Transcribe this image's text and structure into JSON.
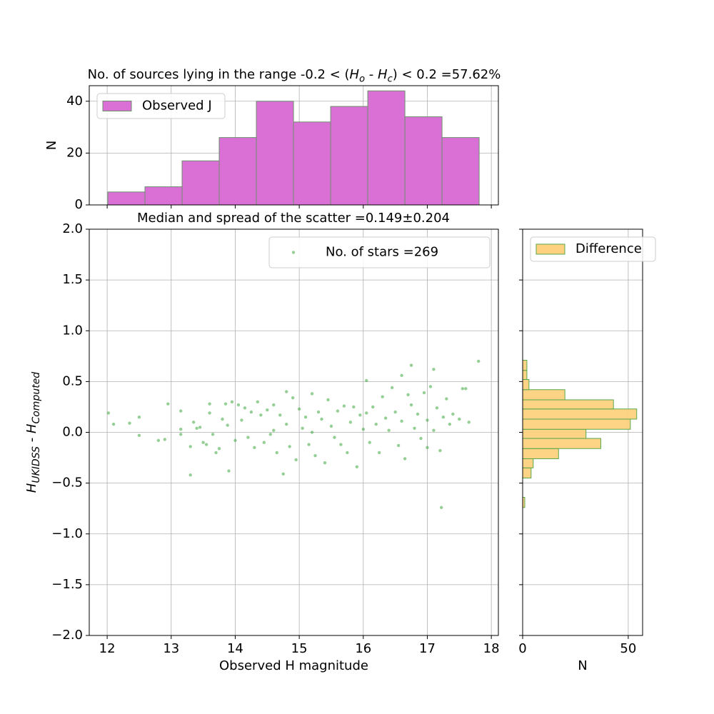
{
  "chart_data": [
    {
      "type": "histogram",
      "orientation": "vertical",
      "title_parts": [
        {
          "text": "No. of sources lying in the range -0.2 < ("
        },
        {
          "text": "H",
          "italic": true
        },
        {
          "text": "o",
          "italic": true,
          "sub": true
        },
        {
          "text": " - "
        },
        {
          "text": "H",
          "italic": true
        },
        {
          "text": "c",
          "italic": true,
          "sub": true
        },
        {
          "text": ") < 0.2 =57.62%"
        }
      ],
      "ylabel": "N",
      "bins": [
        12.01,
        12.59,
        13.17,
        13.75,
        14.33,
        14.91,
        15.49,
        16.07,
        16.65,
        17.23,
        17.81
      ],
      "series": [
        {
          "name": "Observed J",
          "color": "#da70d6",
          "edgecolor": "#6e8f6e",
          "values": [
            5,
            7,
            17,
            26,
            40,
            32,
            38,
            44,
            34,
            26
          ]
        }
      ],
      "xlim": [
        11.72,
        18.11
      ],
      "ylim": [
        0,
        46
      ],
      "xticks": [
        12,
        13,
        14,
        15,
        16,
        17,
        18
      ],
      "yticks": [
        0,
        20,
        40
      ],
      "grid": true,
      "legend": "upper left"
    },
    {
      "type": "scatter",
      "title": "Median and spread of the scatter =0.149±0.204",
      "xlabel": "Observed H magnitude",
      "ylabel_parts": [
        {
          "text": "H",
          "italic": true
        },
        {
          "text": "UKIDSS",
          "italic": true,
          "sub": true
        },
        {
          "text": " - "
        },
        {
          "text": "H",
          "italic": true
        },
        {
          "text": "Computed",
          "italic": true,
          "sub": true
        }
      ],
      "series": [
        {
          "name": "No. of stars =269",
          "color": "#2ca02c",
          "x": [
            12.02,
            12.1,
            12.35,
            12.5,
            12.5,
            12.8,
            12.9,
            12.95,
            13.15,
            13.15,
            13.15,
            13.3,
            13.3,
            13.35,
            13.4,
            13.45,
            13.5,
            13.55,
            13.6,
            13.6,
            13.65,
            13.7,
            13.75,
            13.8,
            13.85,
            13.88,
            13.9,
            13.95,
            14.0,
            14.05,
            14.1,
            14.15,
            14.2,
            14.25,
            14.3,
            14.35,
            14.4,
            14.45,
            14.5,
            14.55,
            14.6,
            14.6,
            14.65,
            14.7,
            14.75,
            14.8,
            14.8,
            14.85,
            14.9,
            14.95,
            15.0,
            15.05,
            15.1,
            15.15,
            15.2,
            15.2,
            15.25,
            15.3,
            15.35,
            15.4,
            15.45,
            15.5,
            15.55,
            15.6,
            15.65,
            15.7,
            15.75,
            15.8,
            15.85,
            15.9,
            15.95,
            16.0,
            16.05,
            16.05,
            16.1,
            16.15,
            16.2,
            16.25,
            16.3,
            16.35,
            16.4,
            16.45,
            16.5,
            16.55,
            16.6,
            16.6,
            16.65,
            16.7,
            16.75,
            16.75,
            16.8,
            16.85,
            16.9,
            16.95,
            17.0,
            17.0,
            17.05,
            17.1,
            17.1,
            17.15,
            17.2,
            17.22,
            17.25,
            17.3,
            17.35,
            17.4,
            17.5,
            17.55,
            17.6,
            17.65,
            17.8
          ],
          "values": [
            0.19,
            0.08,
            0.09,
            0.15,
            -0.03,
            -0.08,
            -0.07,
            0.28,
            0.21,
            0.03,
            -0.02,
            -0.14,
            -0.42,
            0.1,
            0.04,
            0.05,
            -0.1,
            -0.12,
            0.28,
            0.19,
            -0.02,
            -0.2,
            -0.16,
            0.13,
            0.28,
            0.07,
            -0.38,
            0.3,
            -0.08,
            0.27,
            0.12,
            0.24,
            -0.05,
            0.2,
            -0.15,
            0.3,
            0.17,
            -0.1,
            0.22,
            -0.02,
            0.27,
            0.02,
            -0.2,
            0.17,
            -0.41,
            0.4,
            0.08,
            -0.14,
            0.34,
            -0.27,
            0.23,
            0.04,
            0.15,
            -0.12,
            0.38,
            0.0,
            -0.23,
            0.2,
            0.13,
            -0.3,
            0.32,
            0.06,
            -0.05,
            0.21,
            -0.12,
            0.26,
            -0.2,
            0.1,
            0.25,
            -0.34,
            0.17,
            0.03,
            0.51,
            0.19,
            -0.1,
            0.25,
            0.08,
            -0.2,
            0.35,
            0.14,
            0.02,
            0.44,
            0.2,
            -0.13,
            0.56,
            0.11,
            -0.26,
            0.37,
            0.66,
            0.27,
            0.04,
            0.18,
            -0.06,
            0.39,
            0.12,
            -0.15,
            0.45,
            0.62,
            0.02,
            0.24,
            -0.18,
            -0.74,
            0.15,
            0.33,
            0.08,
            0.18,
            0.13,
            0.43,
            0.43,
            0.1,
            0.7
          ]
        }
      ],
      "xlim": [
        11.72,
        18.11
      ],
      "ylim": [
        -2,
        2
      ],
      "xticks": [
        12,
        13,
        14,
        15,
        16,
        17,
        18
      ],
      "yticks": [
        {
          "value": -2,
          "label": "−2.0"
        },
        {
          "value": -1.5,
          "label": "−1.5"
        },
        {
          "value": -1,
          "label": "−1.0"
        },
        {
          "value": -0.5,
          "label": "−0.5"
        },
        {
          "value": 0,
          "label": "0.0"
        },
        {
          "value": 0.5,
          "label": "0.5"
        },
        {
          "value": 1,
          "label": "1.0"
        },
        {
          "value": 1.5,
          "label": "1.5"
        },
        {
          "value": 2,
          "label": "2.0"
        }
      ],
      "grid": true,
      "legend": "upper right"
    },
    {
      "type": "histogram",
      "orientation": "horizontal",
      "xlabel": "N",
      "bins": [
        -0.74,
        -0.64,
        -0.55,
        -0.45,
        -0.35,
        -0.26,
        -0.16,
        -0.06,
        0.03,
        0.13,
        0.23,
        0.32,
        0.42,
        0.52,
        0.61,
        0.71
      ],
      "series": [
        {
          "name": "Difference",
          "color": "#fdd17f",
          "edgecolor": "#5aa84a",
          "values": [
            1,
            0,
            0,
            4,
            5,
            17,
            37,
            30,
            51,
            54,
            43,
            20,
            3,
            2,
            2
          ]
        }
      ],
      "xlim": [
        0,
        56.8
      ],
      "ylim": [
        -2,
        2
      ],
      "xticks": [
        0,
        50
      ],
      "yticks": [
        -2,
        -1.5,
        -1,
        -0.5,
        0,
        0.5,
        1,
        1.5,
        2
      ],
      "grid": true,
      "legend": "upper left"
    }
  ]
}
